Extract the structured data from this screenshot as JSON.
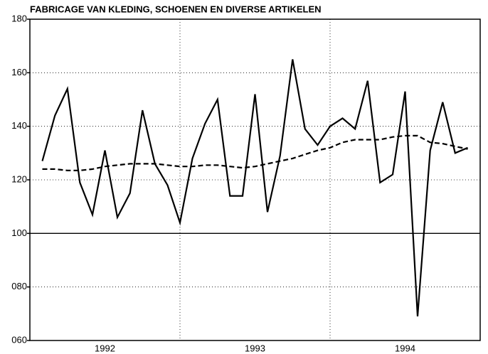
{
  "chart_data": {
    "type": "line",
    "title": "FABRICAGE VAN KLEDING, SCHOENEN EN DIVERSE ARTIKELEN",
    "x": [
      1992.083,
      1992.167,
      1992.25,
      1992.333,
      1992.417,
      1992.5,
      1992.583,
      1992.667,
      1992.75,
      1992.833,
      1992.917,
      1993.0,
      1993.083,
      1993.167,
      1993.25,
      1993.333,
      1993.417,
      1993.5,
      1993.583,
      1993.667,
      1993.75,
      1993.833,
      1993.917,
      1994.0,
      1994.083,
      1994.167,
      1994.25,
      1994.333,
      1994.417,
      1994.5,
      1994.583,
      1994.667,
      1994.75,
      1994.833,
      1994.917
    ],
    "series": [
      {
        "color": "#000000",
        "dash": false,
        "values": [
          127,
          144,
          154,
          119,
          107,
          131,
          106,
          115,
          146,
          126,
          118,
          104,
          128,
          141,
          150,
          114,
          114,
          152,
          108,
          129,
          165,
          139,
          133,
          140,
          143,
          139,
          157,
          119,
          122,
          153,
          69,
          131,
          149,
          130,
          132
        ]
      },
      {
        "color": "#000000",
        "dash": true,
        "values": [
          124,
          124,
          123.5,
          123.5,
          124,
          125,
          125.5,
          126,
          126,
          126,
          125.5,
          125,
          125,
          125.5,
          125.5,
          125,
          124.5,
          125,
          126,
          127,
          128,
          129.5,
          131,
          132,
          134,
          135,
          135,
          135,
          136,
          136.5,
          136.5,
          134,
          133.5,
          132.5,
          131.5
        ]
      }
    ],
    "xlim": [
      1992,
      1995
    ],
    "xticks": [
      {
        "value": 1992.5,
        "label": "1992"
      },
      {
        "value": 1993.5,
        "label": "1993"
      },
      {
        "value": 1994.5,
        "label": "1994"
      }
    ],
    "xgrid": [
      1993,
      1994
    ],
    "ylim": [
      60,
      180
    ],
    "yticks": [
      {
        "value": 60,
        "label": "060"
      },
      {
        "value": 80,
        "label": "080"
      },
      100,
      120,
      140,
      160,
      180
    ],
    "reference_line": 100,
    "grid": true
  }
}
